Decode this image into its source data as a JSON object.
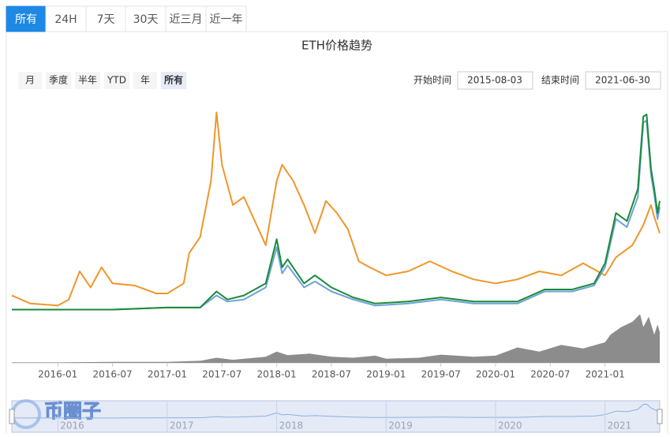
{
  "tabs": [
    "所有",
    "24H",
    "7天",
    "30天",
    "近三月",
    "近一年"
  ],
  "watermark": "币圈子",
  "chart_data": {
    "type": "line",
    "title": "ETH价格趋势",
    "range_buttons": [
      "月",
      "季度",
      "半年",
      "YTD",
      "年",
      "所有"
    ],
    "start_label": "开始时间",
    "start_date": "2015-08-03",
    "end_label": "结束时间",
    "end_date": "2021-06-30",
    "xlim": [
      2015.58,
      2021.5
    ],
    "xticks": [
      {
        "value": 2016.0,
        "label": "2016-01"
      },
      {
        "value": 2016.5,
        "label": "2016-07"
      },
      {
        "value": 2017.0,
        "label": "2017-01"
      },
      {
        "value": 2017.5,
        "label": "2017-07"
      },
      {
        "value": 2018.0,
        "label": "2018-01"
      },
      {
        "value": 2018.5,
        "label": "2018-07"
      },
      {
        "value": 2019.0,
        "label": "2019-01"
      },
      {
        "value": 2019.5,
        "label": "2019-07"
      },
      {
        "value": 2020.0,
        "label": "2020-01"
      },
      {
        "value": 2020.5,
        "label": "2020-07"
      },
      {
        "value": 2021.0,
        "label": "2021-01"
      }
    ],
    "ylim": [
      0,
      100
    ],
    "series": [
      {
        "color": "#f0962a",
        "x": [
          2015.58,
          2015.75,
          2016.0,
          2016.1,
          2016.2,
          2016.3,
          2016.4,
          2016.5,
          2016.7,
          2016.9,
          2017.0,
          2017.15,
          2017.2,
          2017.3,
          2017.4,
          2017.45,
          2017.5,
          2017.6,
          2017.7,
          2017.8,
          2017.9,
          2018.0,
          2018.05,
          2018.15,
          2018.25,
          2018.35,
          2018.45,
          2018.55,
          2018.65,
          2018.75,
          2018.85,
          2019.0,
          2019.2,
          2019.4,
          2019.6,
          2019.8,
          2020.0,
          2020.2,
          2020.4,
          2020.6,
          2020.8,
          2021.0,
          2021.1,
          2021.25,
          2021.35,
          2021.42,
          2021.45,
          2021.5
        ],
        "values": [
          8,
          4,
          3,
          6,
          20,
          12,
          22,
          14,
          13,
          9,
          9,
          14,
          29,
          37,
          65,
          99,
          73,
          53,
          57,
          45,
          33,
          65,
          73,
          65,
          53,
          39,
          55,
          49,
          41,
          25,
          22,
          18,
          20,
          25,
          20,
          16,
          14,
          16,
          20,
          18,
          24,
          18,
          27,
          33,
          43,
          53,
          47,
          39
        ]
      },
      {
        "color": "#6fa3d8",
        "x": [
          2015.58,
          2016.0,
          2016.5,
          2017.0,
          2017.3,
          2017.45,
          2017.55,
          2017.7,
          2017.9,
          2018.0,
          2018.05,
          2018.1,
          2018.25,
          2018.35,
          2018.5,
          2018.7,
          2018.9,
          2019.2,
          2019.5,
          2019.8,
          2020.0,
          2020.2,
          2020.45,
          2020.7,
          2020.9,
          2021.0,
          2021.1,
          2021.2,
          2021.3,
          2021.35,
          2021.38,
          2021.42,
          2021.45,
          2021.48,
          2021.5
        ],
        "values": [
          1,
          1,
          1,
          2,
          2,
          8,
          5,
          6,
          12,
          32,
          19,
          23,
          12,
          15,
          10,
          6,
          3,
          4,
          6,
          4,
          4,
          4,
          10,
          10,
          13,
          22,
          46,
          42,
          57,
          94,
          95,
          68,
          58,
          46,
          52
        ]
      },
      {
        "color": "#1a8a3a",
        "x": [
          2015.58,
          2016.0,
          2016.5,
          2017.0,
          2017.3,
          2017.45,
          2017.55,
          2017.7,
          2017.9,
          2018.0,
          2018.05,
          2018.1,
          2018.25,
          2018.35,
          2018.5,
          2018.7,
          2018.9,
          2019.2,
          2019.5,
          2019.8,
          2020.0,
          2020.2,
          2020.45,
          2020.7,
          2020.9,
          2021.0,
          2021.1,
          2021.2,
          2021.3,
          2021.35,
          2021.38,
          2021.42,
          2021.45,
          2021.48,
          2021.5
        ],
        "values": [
          1,
          1,
          1,
          2,
          2,
          10,
          6,
          8,
          14,
          36,
          22,
          26,
          14,
          18,
          12,
          7,
          4,
          5,
          7,
          5,
          5,
          5,
          11,
          11,
          14,
          24,
          49,
          45,
          61,
          97,
          98,
          71,
          61,
          49,
          55
        ]
      }
    ],
    "volume": {
      "color": "#8c8c8c",
      "ylim": [
        0,
        100
      ],
      "x": [
        2015.58,
        2016.0,
        2016.5,
        2017.0,
        2017.3,
        2017.45,
        2017.6,
        2017.9,
        2018.0,
        2018.1,
        2018.3,
        2018.5,
        2018.7,
        2018.9,
        2019.0,
        2019.3,
        2019.5,
        2019.8,
        2020.0,
        2020.2,
        2020.4,
        2020.6,
        2020.8,
        2021.0,
        2021.05,
        2021.15,
        2021.25,
        2021.32,
        2021.35,
        2021.4,
        2021.45,
        2021.48,
        2021.5
      ],
      "values": [
        1,
        1,
        2,
        2,
        4,
        10,
        6,
        12,
        22,
        15,
        18,
        12,
        10,
        14,
        8,
        10,
        16,
        12,
        14,
        30,
        22,
        35,
        28,
        40,
        55,
        70,
        80,
        95,
        70,
        90,
        55,
        75,
        60
      ]
    },
    "slider": {
      "xticks": [
        {
          "value": 2016.0,
          "label": "2016"
        },
        {
          "value": 2017.0,
          "label": "2017"
        },
        {
          "value": 2018.0,
          "label": "2018"
        },
        {
          "value": 2019.0,
          "label": "2019"
        },
        {
          "value": 2020.0,
          "label": "2020"
        },
        {
          "value": 2021.0,
          "label": "2021"
        }
      ]
    }
  }
}
